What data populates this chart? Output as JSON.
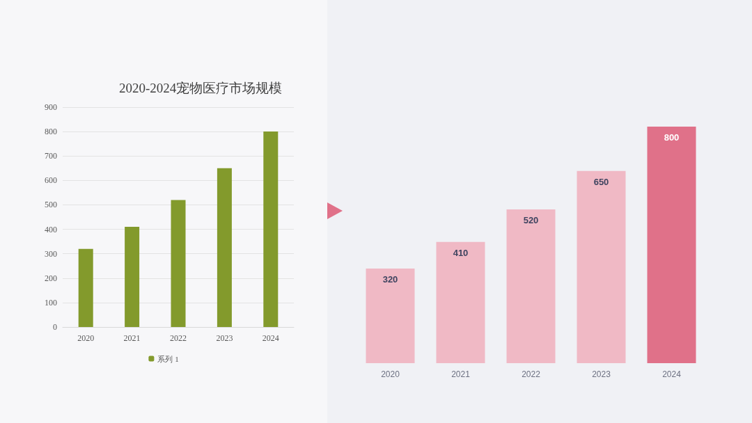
{
  "chart_data": [
    {
      "type": "bar",
      "title": "2020-2024宠物医疗市场规模",
      "categories": [
        "2020",
        "2021",
        "2022",
        "2023",
        "2024"
      ],
      "series": [
        {
          "name": "系列 1",
          "color": "#839a2c",
          "values": [
            320,
            410,
            520,
            650,
            800
          ]
        }
      ],
      "ylim": [
        0,
        900
      ],
      "yticks": [
        0,
        100,
        200,
        300,
        400,
        500,
        600,
        700,
        800,
        900
      ],
      "grid": "y",
      "legend": "bottom"
    },
    {
      "type": "bar",
      "categories": [
        "2020",
        "2021",
        "2022",
        "2023",
        "2024"
      ],
      "values": [
        320,
        410,
        520,
        650,
        800
      ],
      "colors": [
        "#f0b9c5",
        "#f0b9c5",
        "#f0b9c5",
        "#f0b9c5",
        "#e07189"
      ],
      "data_labels": true,
      "tick_labels": "x"
    }
  ]
}
